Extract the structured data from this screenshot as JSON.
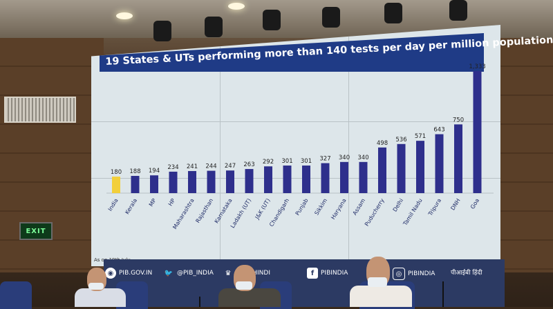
{
  "chart_data": {
    "type": "bar",
    "title": "19 States & UTs performing more than 140 tests per day per million population",
    "categories": [
      "India",
      "Kerala",
      "MP",
      "HP",
      "Maharashtra",
      "Rajasthan",
      "Karnataka",
      "Ladakh (UT)",
      "J&K (UT)",
      "Chandigarh",
      "Punjab",
      "Sikkim",
      "Haryana",
      "Assam",
      "Puducherry",
      "Delhi",
      "Tamil Nadu",
      "Tripura",
      "DNH",
      "Goa"
    ],
    "values": [
      180,
      188,
      194,
      234,
      241,
      244,
      247,
      263,
      292,
      301,
      301,
      327,
      340,
      340,
      498,
      536,
      571,
      643,
      750,
      1333
    ],
    "value_labels": [
      "180",
      "188",
      "194",
      "234",
      "241",
      "244",
      "247",
      "263",
      "292",
      "301",
      "301",
      "327",
      "340",
      "340",
      "498",
      "536",
      "571",
      "643",
      "750",
      "1,333"
    ],
    "highlight_index": 0,
    "colors": {
      "highlight": "#f2cf3a",
      "bar": "#2e2f8c",
      "title_bg": "#1f3b86"
    },
    "footnote": "As on 19th July",
    "ylim": [
      0,
      1400
    ]
  },
  "banner": {
    "items": [
      {
        "icon": "pib-logo-icon",
        "label": "PIB.GOV.IN"
      },
      {
        "icon": "twitter-icon",
        "label": "@PIB_INDIA"
      },
      {
        "icon": "emblem-icon",
        "label": "@PIBHINDI"
      },
      {
        "icon": "facebook-icon",
        "label": "PIBINDIA"
      },
      {
        "icon": "instagram-icon",
        "label": "PIBINDIA"
      },
      {
        "icon": "",
        "label": "पीआईबी हिंदी"
      }
    ]
  },
  "signage": {
    "exit": "EXIT"
  }
}
